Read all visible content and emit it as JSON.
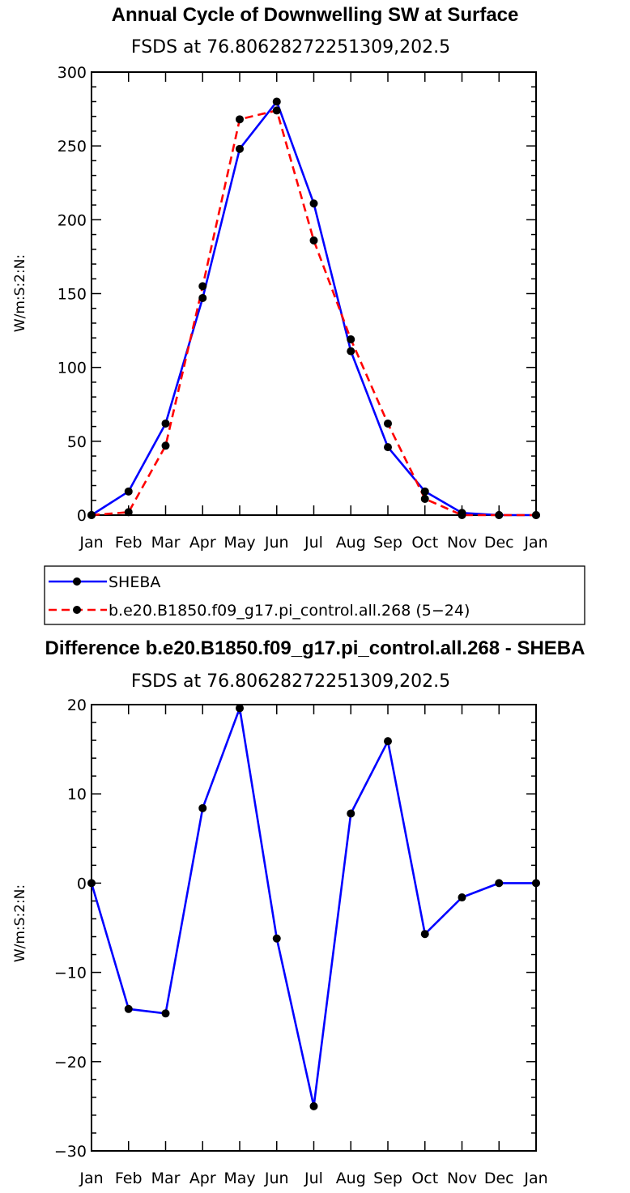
{
  "chart_data": [
    {
      "type": "line",
      "title": "Annual Cycle of Downwelling SW at Surface",
      "subtitle": "FSDS at 76.80628272251309,202.5",
      "ylabel": "W/m:S:2:N:",
      "xlabel": "",
      "categories": [
        "Jan",
        "Feb",
        "Mar",
        "Apr",
        "May",
        "Jun",
        "Jul",
        "Aug",
        "Sep",
        "Oct",
        "Nov",
        "Dec",
        "Jan"
      ],
      "ylim": [
        0,
        300
      ],
      "yticks": [
        0,
        50,
        100,
        150,
        200,
        250,
        300
      ],
      "series": [
        {
          "name": "SHEBA",
          "color": "#0000ff",
          "dash": "solid",
          "values": [
            0,
            16,
            62,
            147,
            248,
            280,
            211,
            111,
            46,
            16,
            1.5,
            0,
            0
          ]
        },
        {
          "name": "b.e20.B1850.f09_g17.pi_control.all.268 (5−24)",
          "color": "#ff0000",
          "dash": "dashed",
          "values": [
            0,
            2,
            47,
            155,
            268,
            274,
            186,
            119,
            62,
            11,
            0,
            0,
            0
          ]
        }
      ]
    },
    {
      "type": "line",
      "title": "Difference b.e20.B1850.f09_g17.pi_control.all.268 - SHEBA",
      "subtitle": "FSDS at 76.80628272251309,202.5",
      "ylabel": "W/m:S:2:N:",
      "xlabel": "",
      "categories": [
        "Jan",
        "Feb",
        "Mar",
        "Apr",
        "May",
        "Jun",
        "Jul",
        "Aug",
        "Sep",
        "Oct",
        "Nov",
        "Dec",
        "Jan"
      ],
      "ylim": [
        -30,
        20
      ],
      "yticks": [
        -30,
        -20,
        -10,
        0,
        10,
        20
      ],
      "series": [
        {
          "name": "Difference",
          "color": "#0000ff",
          "dash": "solid",
          "values": [
            0,
            -14.1,
            -14.6,
            8.4,
            19.6,
            -6.2,
            -25,
            7.8,
            15.9,
            -5.7,
            -1.6,
            0,
            0
          ]
        }
      ]
    }
  ]
}
